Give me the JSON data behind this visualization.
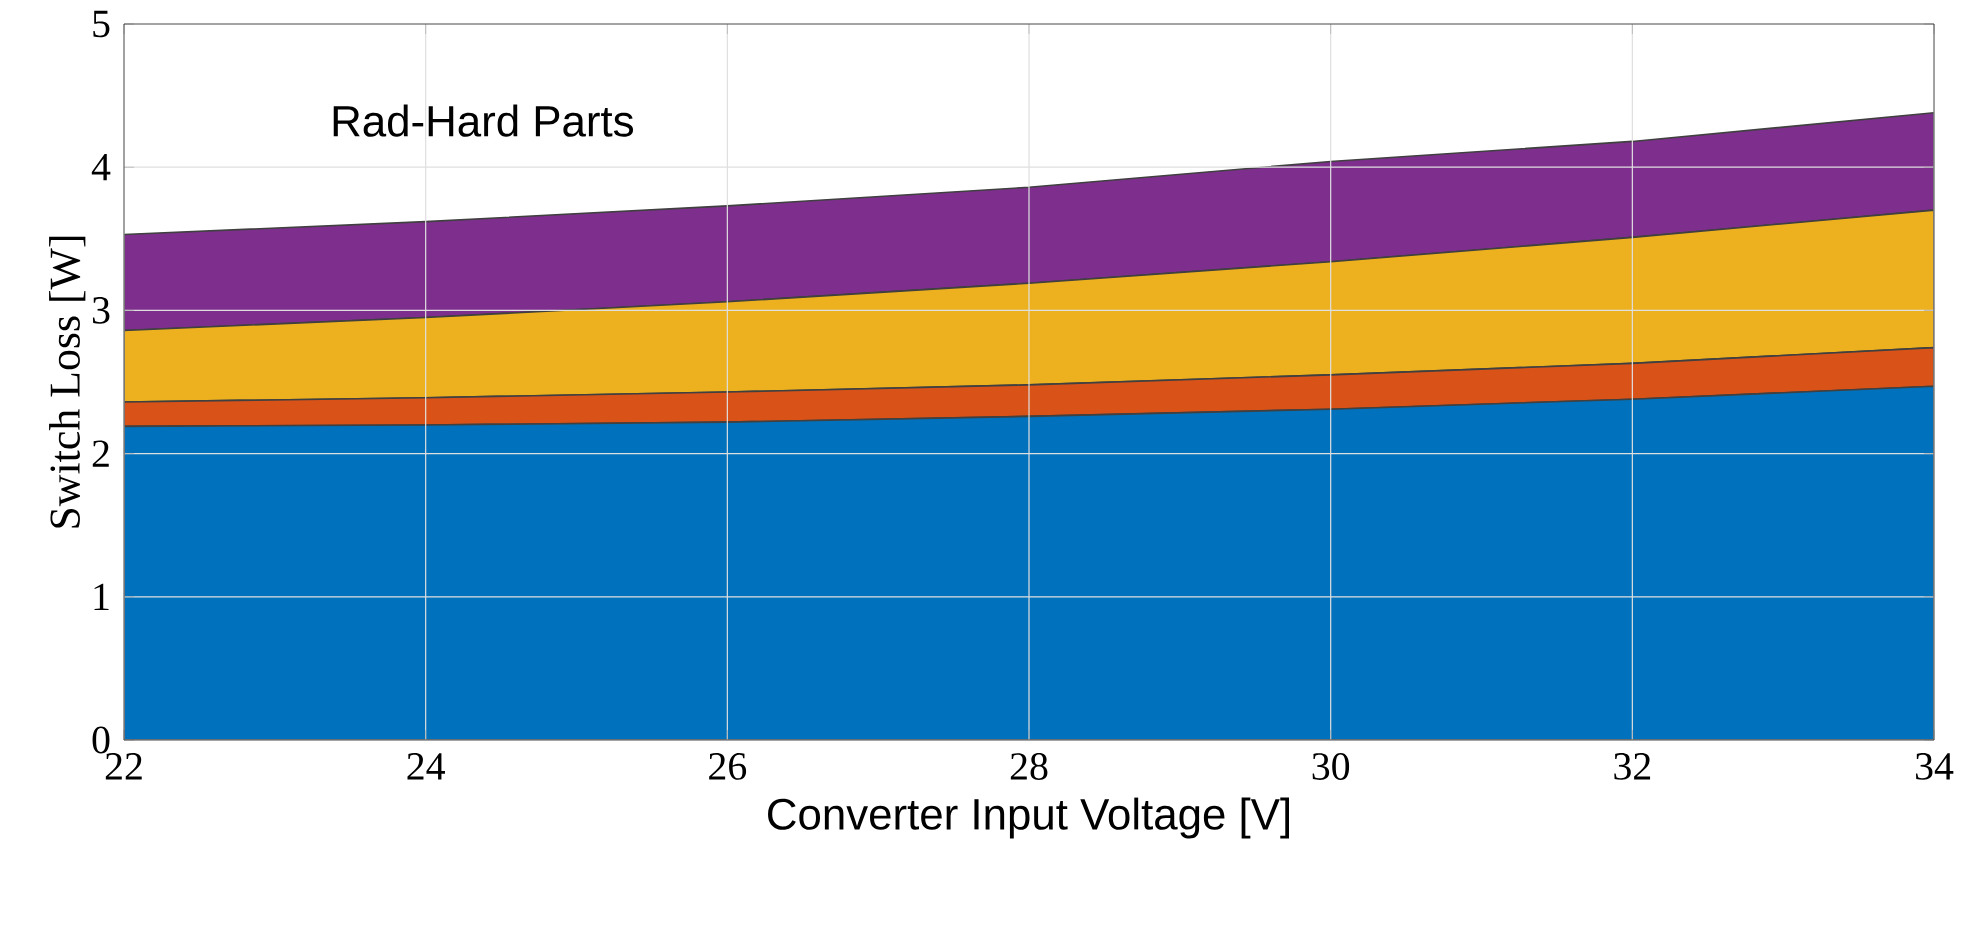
{
  "chart_data": {
    "type": "area",
    "stacked": true,
    "xlabel": "Converter Input Voltage [V]",
    "ylabel": "Switch Loss [W]",
    "annotations": [
      "Rad-Hard Parts"
    ],
    "x": [
      22,
      24,
      26,
      28,
      30,
      32,
      34
    ],
    "series": [
      {
        "color": "#0072bd",
        "values": [
          2.19,
          2.2,
          2.22,
          2.26,
          2.31,
          2.38,
          2.47
        ]
      },
      {
        "color": "#d95319",
        "values": [
          0.17,
          0.19,
          0.21,
          0.22,
          0.24,
          0.25,
          0.27
        ]
      },
      {
        "color": "#edb120",
        "values": [
          0.5,
          0.56,
          0.63,
          0.71,
          0.79,
          0.88,
          0.96
        ]
      },
      {
        "color": "#7e2f8e",
        "values": [
          0.67,
          0.67,
          0.67,
          0.67,
          0.7,
          0.67,
          0.68
        ]
      }
    ],
    "xlim": [
      22,
      34
    ],
    "ylim": [
      0,
      5
    ],
    "xticks": [
      22,
      24,
      26,
      28,
      30,
      32,
      34
    ],
    "yticks": [
      0,
      1,
      2,
      3,
      4,
      5
    ],
    "grid": true
  }
}
